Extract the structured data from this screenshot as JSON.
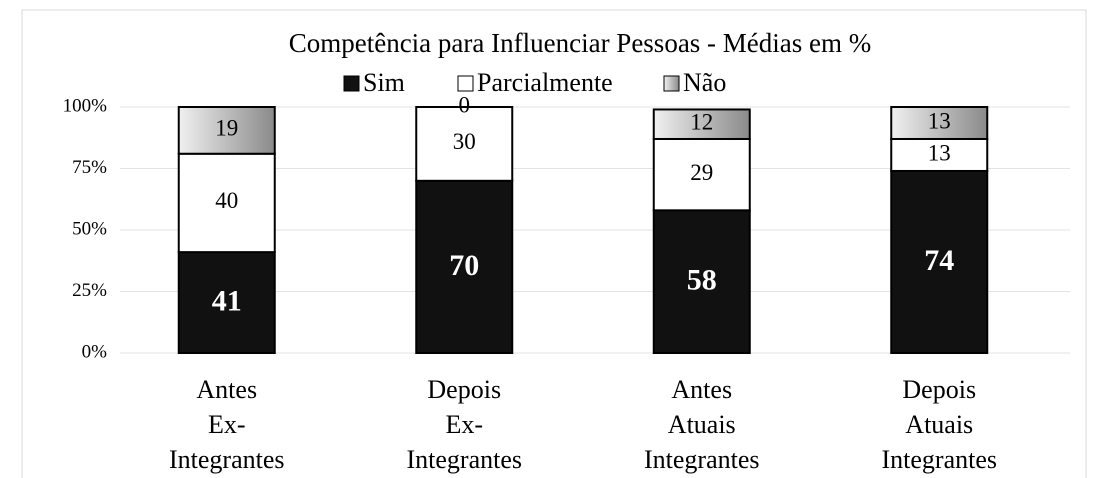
{
  "chart_data": {
    "type": "stacked-bar",
    "title": "Competência para Influenciar Pessoas - Médias em %",
    "categories": [
      [
        "Antes",
        "Ex-",
        "Integrantes"
      ],
      [
        "Depois",
        "Ex-",
        "Integrantes"
      ],
      [
        "Antes",
        "Atuais",
        "Integrantes"
      ],
      [
        "Depois",
        "Atuais",
        "Integrantes"
      ]
    ],
    "series": [
      {
        "name": "Sim",
        "color": "#111111",
        "values": [
          41,
          70,
          58,
          74
        ]
      },
      {
        "name": "Parcialmente",
        "color": "#ffffff",
        "values": [
          40,
          30,
          29,
          13
        ]
      },
      {
        "name": "Não",
        "color": "#b0b0b0",
        "values": [
          19,
          0,
          12,
          13
        ]
      }
    ],
    "ylim": [
      0,
      100
    ],
    "yticks": [
      {
        "value": 0,
        "label": "0%"
      },
      {
        "value": 25,
        "label": "25%"
      },
      {
        "value": 50,
        "label": "50%"
      },
      {
        "value": 75,
        "label": "75%"
      },
      {
        "value": 100,
        "label": "100%"
      }
    ],
    "grid": true,
    "legend": "top"
  }
}
